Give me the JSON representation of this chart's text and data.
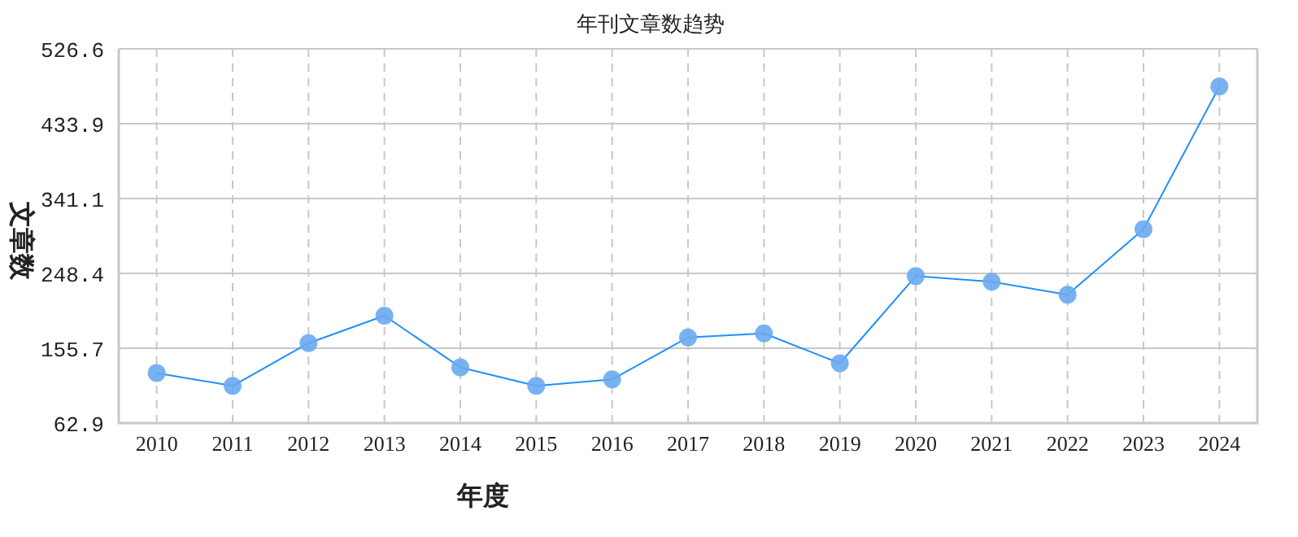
{
  "chart_data": {
    "type": "line",
    "title": "年刊文章数趋势",
    "xlabel": "年度",
    "ylabel": "文章数",
    "categories": [
      "2010",
      "2011",
      "2012",
      "2013",
      "2014",
      "2015",
      "2016",
      "2017",
      "2018",
      "2019",
      "2020",
      "2021",
      "2022",
      "2023",
      "2024"
    ],
    "series": [
      {
        "color": "#1e90ff",
        "values": [
          125,
          109,
          162,
          196,
          132,
          109,
          117,
          169,
          174,
          137,
          245,
          238,
          222,
          303,
          480
        ]
      }
    ],
    "ylim": [
      62.9,
      526.6
    ],
    "yticks": [
      62.9,
      155.7,
      248.4,
      341.1,
      433.9,
      526.6
    ],
    "grid": true,
    "marker": "circle",
    "line_style": "solid"
  }
}
